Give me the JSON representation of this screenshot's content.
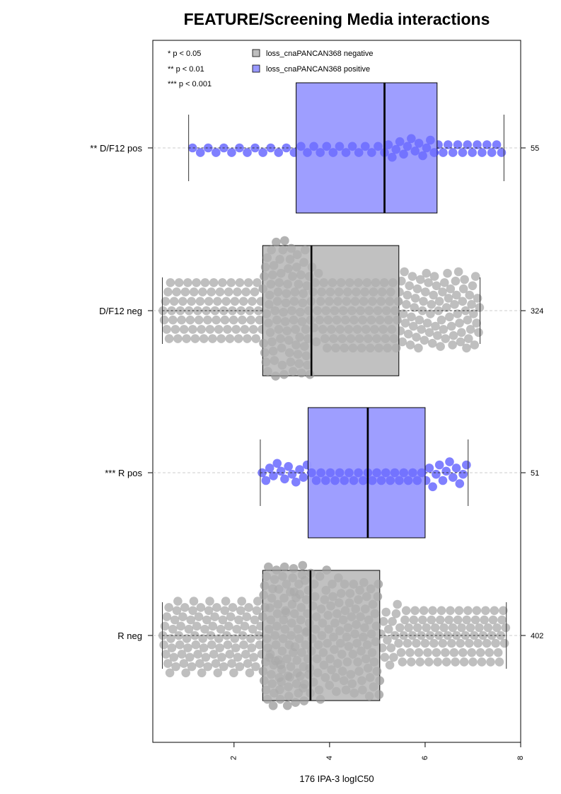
{
  "chart_data": {
    "type": "boxplot-beeswarm",
    "orientation": "horizontal",
    "title": "FEATURE/Screening Media interactions",
    "xlabel": "176 IPA-3 logIC50",
    "xlim": [
      0.3,
      8.0
    ],
    "xticks": [
      2,
      4,
      6,
      8
    ],
    "significance_legend": [
      "* p < 0.05",
      "** p < 0.01",
      "*** p < 0.001"
    ],
    "legend": [
      {
        "label": "loss_cnaPANCAN368 negative",
        "color": "#bebebe"
      },
      {
        "label": "loss_cnaPANCAN368 positive",
        "color": "#9999ff"
      }
    ],
    "colors": {
      "negative_box": "#bebebe",
      "positive_box": "#9999ff",
      "negative_points": "#aaaaaa",
      "positive_points": "#5555ff"
    },
    "groups": [
      {
        "label": "** D/F12 pos",
        "status": "positive",
        "n": "55",
        "whisker_low": 1.05,
        "q1": 3.3,
        "median": 5.15,
        "q3": 6.25,
        "whisker_high": 7.65
      },
      {
        "label": "D/F12 neg",
        "status": "negative",
        "n": "324",
        "whisker_low": 0.5,
        "q1": 2.6,
        "median": 3.62,
        "q3": 5.45,
        "whisker_high": 7.15
      },
      {
        "label": "*** R pos",
        "status": "positive",
        "n": "51",
        "whisker_low": 2.55,
        "q1": 3.55,
        "median": 4.8,
        "q3": 6.0,
        "whisker_high": 6.9
      },
      {
        "label": "R neg",
        "status": "negative",
        "n": "402",
        "whisker_low": 0.5,
        "q1": 2.6,
        "median": 3.6,
        "q3": 5.05,
        "whisker_high": 7.7
      }
    ]
  }
}
